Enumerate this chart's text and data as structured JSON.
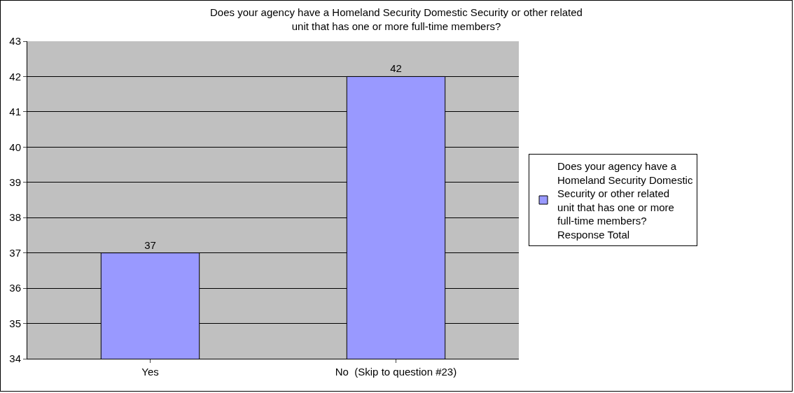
{
  "chart_data": {
    "type": "bar",
    "title": "Does your agency have a Homeland Security Domestic Security or other related unit that has one or more full-time members?",
    "categories": [
      "Yes",
      "No  (Skip to question #23)"
    ],
    "series": [
      {
        "name": "Does your agency have a Homeland Security Domestic Security or other related unit that has one or more full-time members?  Response Total",
        "color": "#9999ff",
        "values": [
          37,
          42
        ]
      }
    ],
    "ylim": [
      34,
      43
    ],
    "yticks": [
      34,
      35,
      36,
      37,
      38,
      39,
      40,
      41,
      42,
      43
    ],
    "grid": "y",
    "legend": "right",
    "data_labels": true
  }
}
